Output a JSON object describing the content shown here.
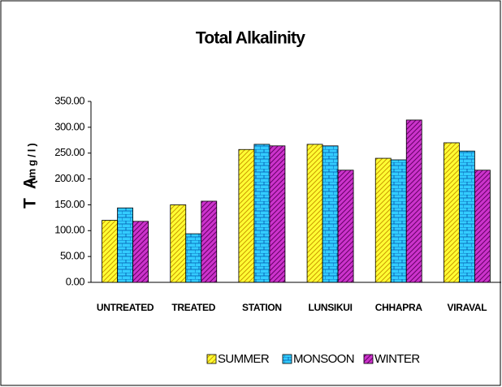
{
  "chart_data": {
    "type": "bar",
    "title": "Total Alkalinity",
    "y_label": "T A",
    "y_unit": "(mg/l)",
    "categories": [
      "UNTREATED",
      "TREATED",
      "STATION",
      "LUNSIKUI",
      "CHHAPRA",
      "VIRAVAL"
    ],
    "series": [
      {
        "name": "SUMMER",
        "color": "#ffff33",
        "values": [
          120,
          150,
          257,
          267,
          240,
          270
        ]
      },
      {
        "name": "MONSOON",
        "color": "#33ccff",
        "values": [
          144,
          94,
          267,
          264,
          237,
          254
        ]
      },
      {
        "name": "WINTER",
        "color": "#cc33cc",
        "values": [
          118,
          157,
          264,
          217,
          314,
          217
        ]
      }
    ],
    "ylim": [
      0,
      350
    ],
    "yticks": [
      {
        "value": 0,
        "label": "0.00"
      },
      {
        "value": 50,
        "label": "50.00"
      },
      {
        "value": 100,
        "label": "100.00"
      },
      {
        "value": 150,
        "label": "150.00"
      },
      {
        "value": 200,
        "label": "200.00"
      },
      {
        "value": 250,
        "label": "250.00"
      },
      {
        "value": 300,
        "label": "300.00"
      },
      {
        "value": 350,
        "label": "350.00"
      }
    ],
    "grid": false,
    "legend": "bottom"
  }
}
